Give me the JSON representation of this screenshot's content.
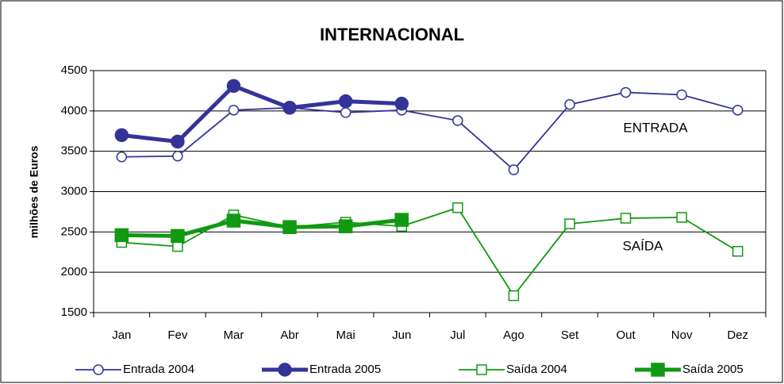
{
  "chart_data": {
    "type": "line",
    "title": "INTERNACIONAL",
    "y_label": "milhões de Euros",
    "categories": [
      "Jan",
      "Fev",
      "Mar",
      "Abr",
      "Mai",
      "Jun",
      "Jul",
      "Ago",
      "Set",
      "Out",
      "Nov",
      "Dez"
    ],
    "series": [
      {
        "name": "Entrada 2004",
        "color": "#333399",
        "marker": "open-circle",
        "values": [
          3430,
          3440,
          4010,
          4040,
          3980,
          4010,
          3880,
          3270,
          4080,
          4230,
          4200,
          4010
        ]
      },
      {
        "name": "Entrada 2005",
        "color": "#333399",
        "marker": "filled-circle",
        "values": [
          3700,
          3620,
          4310,
          4040,
          4120,
          4090,
          null,
          null,
          null,
          null,
          null,
          null
        ]
      },
      {
        "name": "Saída 2004",
        "color": "#119911",
        "marker": "open-square",
        "values": [
          2370,
          2320,
          2710,
          2560,
          2620,
          2570,
          2800,
          1710,
          2600,
          2670,
          2680,
          2260
        ]
      },
      {
        "name": "Saída 2005",
        "color": "#119911",
        "marker": "filled-square",
        "values": [
          2460,
          2450,
          2640,
          2560,
          2570,
          2650,
          null,
          null,
          null,
          null,
          null,
          null
        ]
      }
    ],
    "annotations": [
      "ENTRADA",
      "SAÍDA"
    ],
    "ylim": [
      1500,
      4500
    ],
    "yticks": [
      1500,
      2000,
      2500,
      3000,
      3500,
      4000,
      4500
    ],
    "grid": true,
    "legend": "bottom"
  }
}
